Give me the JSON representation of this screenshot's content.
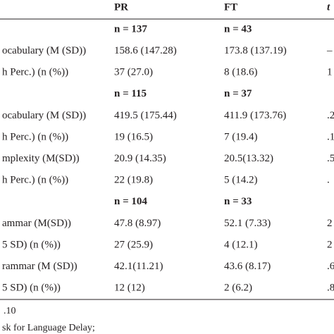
{
  "table": {
    "header": [
      "PR",
      "FT",
      "t"
    ],
    "rows": [
      [
        "n = 137",
        "n = 43"
      ],
      [
        "ocabulary (M (SD))",
        "158.6 (147.28)",
        "173.8 (137.19)",
        "–"
      ],
      [
        "h Perc.) (n (%))",
        "37 (27.0)",
        "8 (18.6)",
        "1"
      ],
      [
        "n = 115",
        "n = 37"
      ],
      [
        "ocabulary (M (SD))",
        "419.5 (175.44)",
        "411.9 (173.76)",
        ".2"
      ],
      [
        "h Perc.) (n (%))",
        "19 (16.5)",
        "7 (19.4)",
        ".1"
      ],
      [
        "mplexity (M(SD))",
        "20.9 (14.35)",
        "20.5(13.32)",
        ".5"
      ],
      [
        "h Perc.) (n (%))",
        "22 (19.8)",
        "5 (14.2)",
        "."
      ],
      [
        "n = 104",
        "n = 33"
      ],
      [
        "ammar (M(SD))",
        "47.8 (8.97)",
        "52.1 (7.33)",
        "2"
      ],
      [
        "5 SD) (n (%))",
        "27 (25.9)",
        "4 (12.1)",
        "2"
      ],
      [
        "rammar (M (SD))",
        "42.1(11.21)",
        "43.6 (8.17)",
        ".6"
      ],
      [
        "5 SD) (n (%))",
        "12 (12)",
        "2 (6.2)",
        ".8"
      ]
    ]
  },
  "footnotes": [
    ".10",
    "sk for Language Delay;"
  ]
}
